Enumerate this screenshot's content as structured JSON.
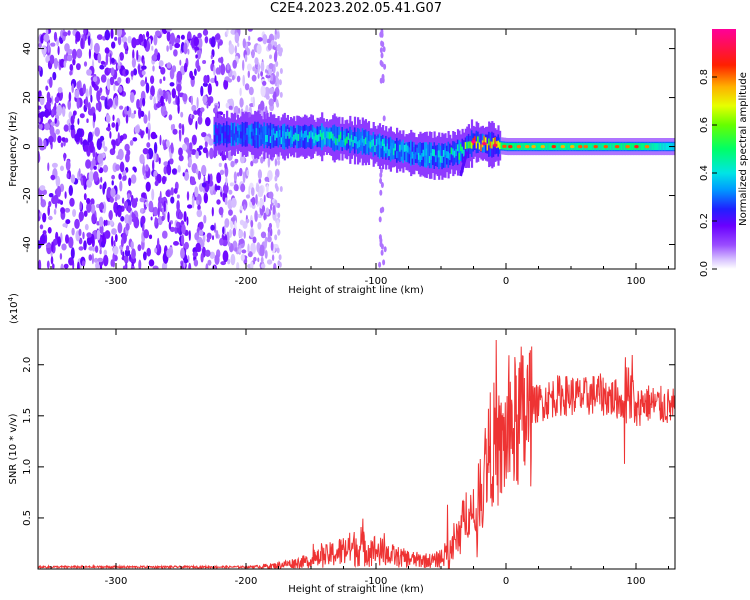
{
  "title": "C2E4.2023.202.05.41.G07",
  "chart_data": [
    {
      "type": "heatmap",
      "xlabel": "Height of straight line (km)",
      "ylabel": "Frequency (Hz)",
      "xlim": [
        -360,
        130
      ],
      "ylim": [
        -50,
        48
      ],
      "x_ticks": [
        -300,
        -200,
        -100,
        0,
        100
      ],
      "y_ticks": [
        -40,
        -20,
        0,
        20,
        40
      ],
      "colorbar": {
        "label": "Normalized spectral amplitude",
        "range": [
          0,
          1
        ],
        "ticks": [
          "0.0",
          "0.2",
          "0.4",
          "0.6",
          "0.8"
        ],
        "colors": [
          "#ffffff",
          "#cc99ff",
          "#7a00ff",
          "#2a1aff",
          "#00aaff",
          "#00ffcc",
          "#33ff33",
          "#ccff00",
          "#ffff00",
          "#ff9900",
          "#ff0000",
          "#ff0088"
        ]
      },
      "ridge": {
        "x": [
          -225,
          -200,
          -170,
          -140,
          -110,
          -90,
          -70,
          -50,
          -35,
          -25,
          -15,
          0,
          20,
          50,
          80,
          100,
          130
        ],
        "frequency": [
          5,
          5,
          4,
          4,
          2,
          -1,
          -3,
          -4,
          -2,
          2,
          1,
          0,
          0,
          0,
          0,
          0,
          0
        ],
        "peak_amplitude": [
          0.25,
          0.35,
          0.45,
          0.5,
          0.5,
          0.45,
          0.4,
          0.45,
          0.55,
          0.9,
          0.85,
          0.8,
          0.75,
          0.75,
          0.75,
          0.8,
          0.6
        ]
      },
      "noise_region_x": [
        -360,
        -185
      ]
    },
    {
      "type": "line",
      "xlabel": "Height of straight line (km)",
      "ylabel": "SNR (10 * v/v)",
      "y_multiplier": "(x10",
      "y_multiplier_exp": "4",
      "y_multiplier_close": ")",
      "xlim": [
        -360,
        130
      ],
      "ylim": [
        0,
        23500
      ],
      "x_ticks": [
        -300,
        -200,
        -100,
        0,
        100
      ],
      "y_ticks": [
        "0.5",
        "1.0",
        "1.5",
        "2.0"
      ],
      "series": [
        {
          "color": "#ee3333",
          "x": [
            -360,
            -300,
            -250,
            -200,
            -180,
            -150,
            -130,
            -115,
            -100,
            -85,
            -70,
            -55,
            -45,
            -38,
            -32,
            -28,
            -25,
            -20,
            -15,
            -10,
            -5,
            0,
            5,
            10,
            15,
            20,
            30,
            40,
            50,
            60,
            70,
            80,
            90,
            95,
            100,
            105,
            110,
            120,
            130
          ],
          "y": [
            200,
            200,
            200,
            200,
            300,
            800,
            1600,
            2100,
            1800,
            1200,
            900,
            800,
            1500,
            3000,
            5000,
            6500,
            3500,
            8000,
            10500,
            12500,
            11000,
            13000,
            13500,
            15000,
            14500,
            16000,
            16500,
            17000,
            17000,
            16800,
            17200,
            16800,
            16500,
            19000,
            15000,
            16500,
            16200,
            16000,
            15800
          ]
        }
      ]
    }
  ]
}
